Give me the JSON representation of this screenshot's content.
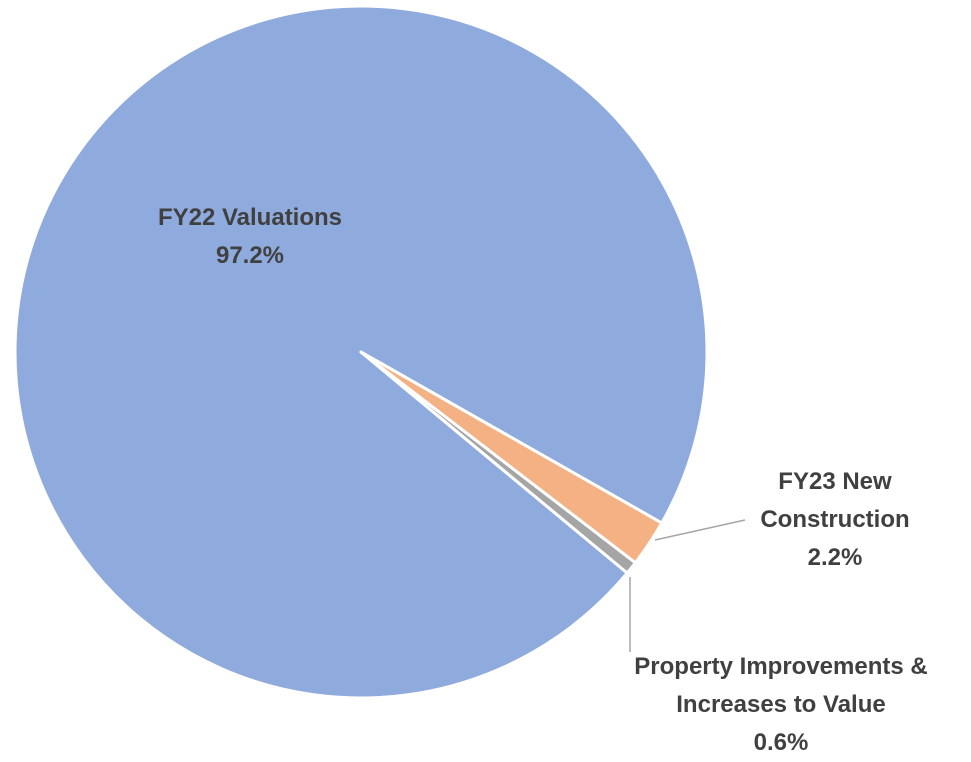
{
  "chart_data": {
    "type": "pie",
    "categories": [
      "FY22 Valuations",
      "FY23 New Construction",
      "Property Improvements & Increases to Value"
    ],
    "values": [
      97.2,
      2.2,
      0.6
    ],
    "value_labels": [
      "97.2%",
      "2.2%",
      "0.6%"
    ],
    "colors": [
      "#8faadc",
      "#f4b183",
      "#a5a5a5"
    ]
  }
}
